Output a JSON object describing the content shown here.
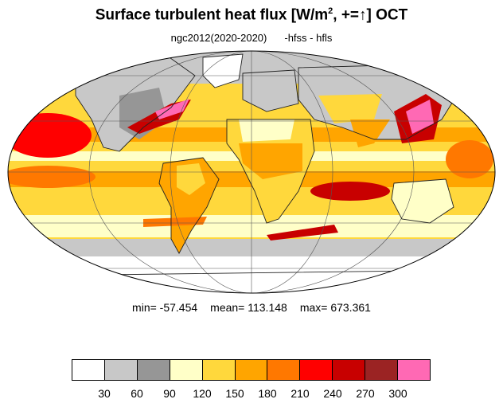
{
  "title": {
    "prefix": "Surface turbulent heat flux [W/m",
    "superscript": "2",
    "middle": ", +=",
    "arrow": "↑",
    "suffix": "]  OCT"
  },
  "subtitle": {
    "run": "ngc2012(2020-2020)",
    "expression": "-hfss - hfls"
  },
  "stats": {
    "min": "min= -57.454",
    "mean": "mean= 113.148",
    "max": "max= 673.361"
  },
  "colorbar": {
    "colors": [
      "#ffffff",
      "#c8c8c8",
      "#969696",
      "#ffffc8",
      "#ffd83c",
      "#ffa500",
      "#ff7800",
      "#ff0000",
      "#c80000",
      "#9b2323",
      "#ff69b4"
    ],
    "ticks": [
      "30",
      "60",
      "90",
      "120",
      "150",
      "180",
      "210",
      "240",
      "270",
      "300"
    ]
  }
}
